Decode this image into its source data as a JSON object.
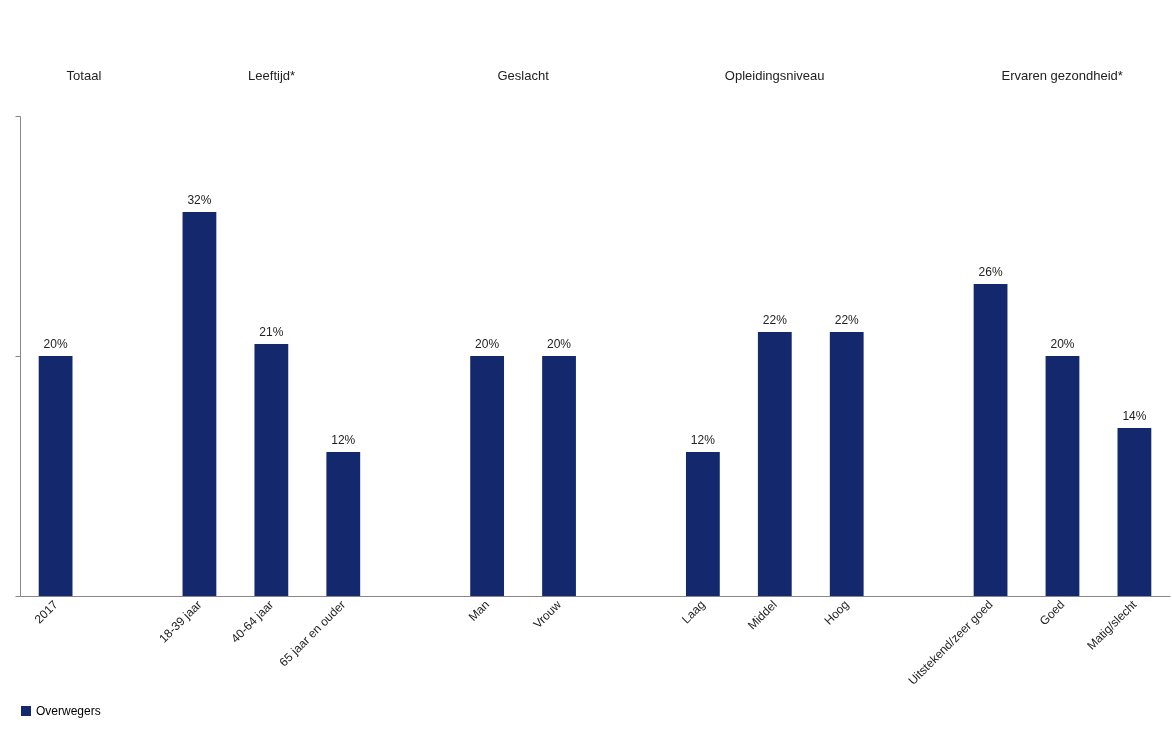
{
  "chart_data": {
    "type": "bar",
    "categories": [
      "2017",
      null,
      "18-39 jaar",
      "40-64 jaar",
      "65 jaar en ouder",
      null,
      "Man",
      "Vrouw",
      null,
      "Laag",
      "Middel",
      "Hoog",
      null,
      "Uitstekend/zeer goed",
      "Goed",
      "Matig/slecht"
    ],
    "series": [
      {
        "name": "Overwegers",
        "color": "#14286e",
        "values": [
          20,
          null,
          32,
          21,
          12,
          null,
          20,
          20,
          null,
          12,
          22,
          22,
          null,
          26,
          20,
          14
        ],
        "value_labels": [
          "20%",
          null,
          "32%",
          "21%",
          "12%",
          null,
          "20%",
          "20%",
          null,
          "12%",
          "22%",
          "22%",
          null,
          "26%",
          "20%",
          "14%"
        ]
      }
    ],
    "ylim": [
      0,
      40
    ],
    "yticks": [
      {
        "value": 0,
        "label": null
      },
      {
        "value": 20,
        "label": null
      },
      {
        "value": 40,
        "label": null
      }
    ],
    "tick_labels": "x",
    "grid": false,
    "legend": "bottom",
    "annotations": [
      "Totaal",
      "Leeftijd*",
      "Geslacht",
      "Opleidingsniveau",
      "Ervaren gezondheid*"
    ]
  }
}
